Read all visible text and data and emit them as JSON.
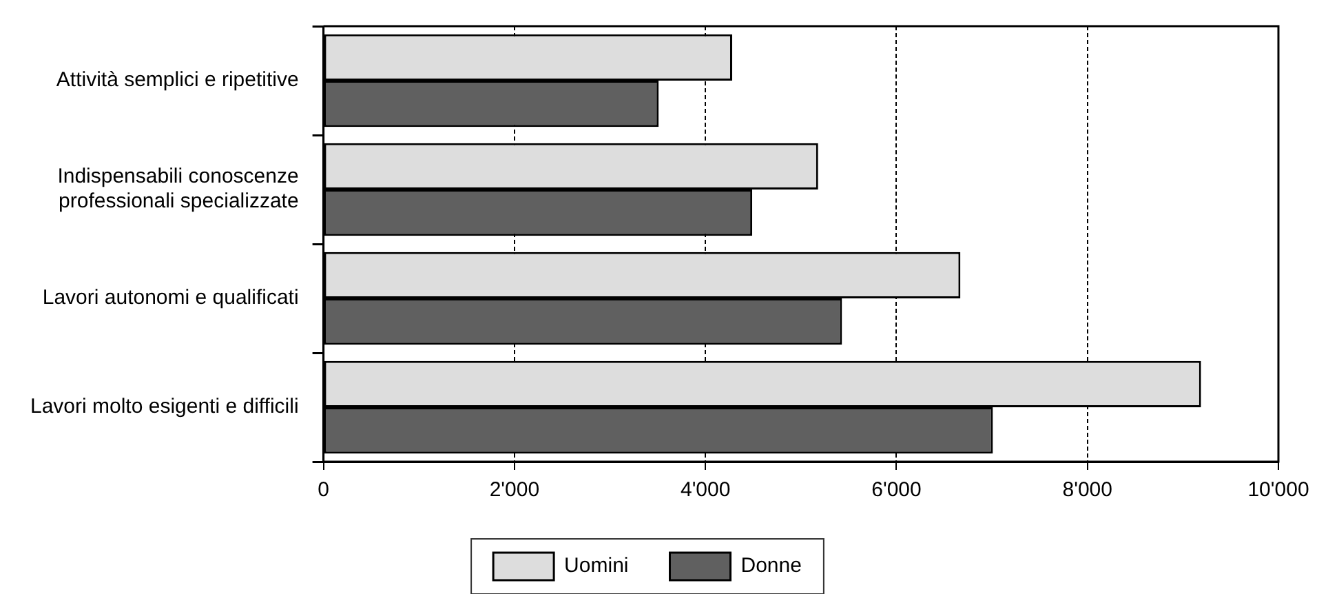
{
  "chart_data": {
    "type": "bar",
    "orientation": "horizontal",
    "categories": [
      "Attività semplici e ripetitive",
      "Indispensabili conoscenze professionali specializzate",
      "Lavori autonomi e qualificati",
      "Lavori molto esigenti e difficili"
    ],
    "series": [
      {
        "name": "Uomini",
        "color": "#dddddd",
        "values": [
          4280,
          5180,
          6670,
          9190
        ]
      },
      {
        "name": "Donne",
        "color": "#606060",
        "values": [
          3510,
          4490,
          5430,
          7010
        ]
      }
    ],
    "xlim": [
      0,
      10000
    ],
    "xticks": [
      0,
      {
        "value": 2000,
        "label": "2'000"
      },
      {
        "value": 4000,
        "label": "4'000"
      },
      {
        "value": 6000,
        "label": "6'000"
      },
      {
        "value": 8000,
        "label": "8'000"
      },
      {
        "value": 10000,
        "label": "10'000"
      }
    ],
    "grid": "x",
    "legend": "bottom"
  }
}
